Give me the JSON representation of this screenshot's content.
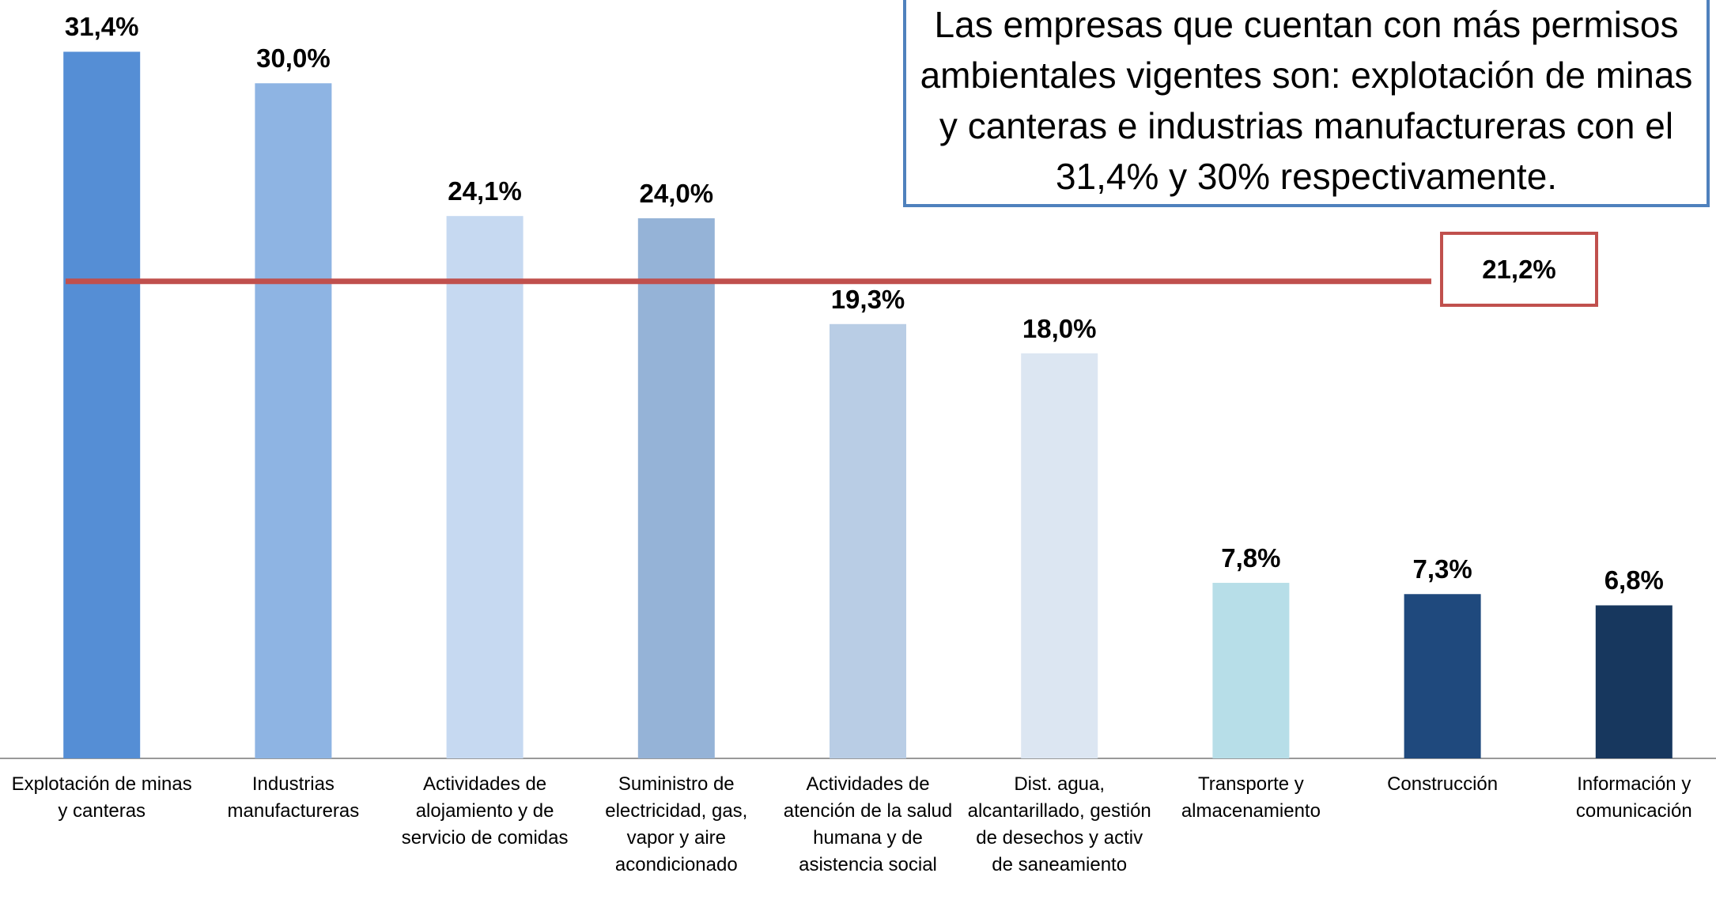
{
  "chart_data": {
    "type": "bar",
    "annotation": "Las empresas que cuentan con más permisos ambientales vigentes son: explotación de minas y canteras e industrias manufactureras con el 31,4% y 30% respectivamente.",
    "categories": [
      "Explotación de minas y canteras",
      "Industrias manufactureras",
      "Actividades de alojamiento y de servicio de comidas",
      "Suministro de electricidad, gas, vapor y aire acondicionado",
      "Actividades de atención de la salud humana y de asistencia social",
      "Dist. agua, alcantarillado, gestión de desechos y activ de saneamiento",
      "Transporte y almacenamiento",
      "Construcción",
      "Información y comunicación"
    ],
    "values": [
      31.4,
      30.0,
      24.1,
      24.0,
      19.3,
      18.0,
      7.8,
      7.3,
      6.8
    ],
    "value_labels": [
      "31,4%",
      "30,0%",
      "24,1%",
      "24,0%",
      "19,3%",
      "18,0%",
      "7,8%",
      "7,3%",
      "6,8%"
    ],
    "colors": [
      "#558ed5",
      "#8eb4e3",
      "#c6d9f1",
      "#95b3d7",
      "#b9cde5",
      "#dce6f2",
      "#b7dee8",
      "#1f497d",
      "#17375e"
    ],
    "ylim": [
      0,
      33.7
    ],
    "reference_line": {
      "value": 21.2,
      "label": "21,2%",
      "color": "#c0504d"
    }
  }
}
